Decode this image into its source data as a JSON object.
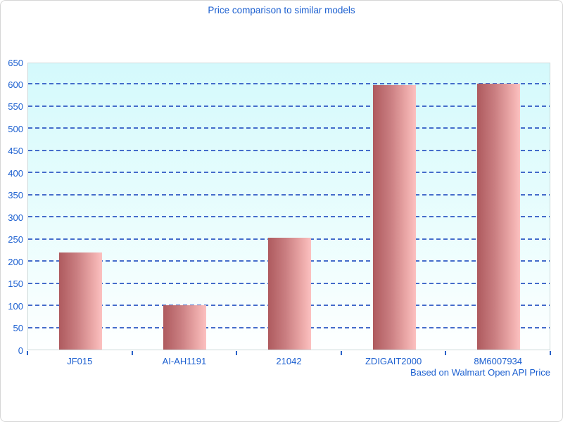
{
  "window": {
    "background": "#ffffff",
    "border_color": "#d6d6d6"
  },
  "chart_data": {
    "type": "bar",
    "title": "Price comparison to similar models",
    "categories": [
      "JF015",
      "AI-AH1191",
      "21042",
      "ZDIGAIT2000",
      "8M6007934"
    ],
    "values": [
      220,
      100,
      253,
      598,
      601
    ],
    "xlabel": "",
    "ylabel": "",
    "ylim": [
      0,
      650
    ],
    "ytick_step": 50,
    "grid": "horizontal-dashed",
    "legend_position": "none",
    "footer": "Based on Walmart Open API Price",
    "colors": {
      "text": "#1b5fd0",
      "grid": "#3b64c8",
      "bar_gradient_start": "#ae5a5e",
      "bar_gradient_end": "#fcc1c0",
      "plot_bg_top": "#d4f9fc",
      "plot_bg_bottom": "#feffff",
      "plot_border": "#ccd9da"
    }
  }
}
